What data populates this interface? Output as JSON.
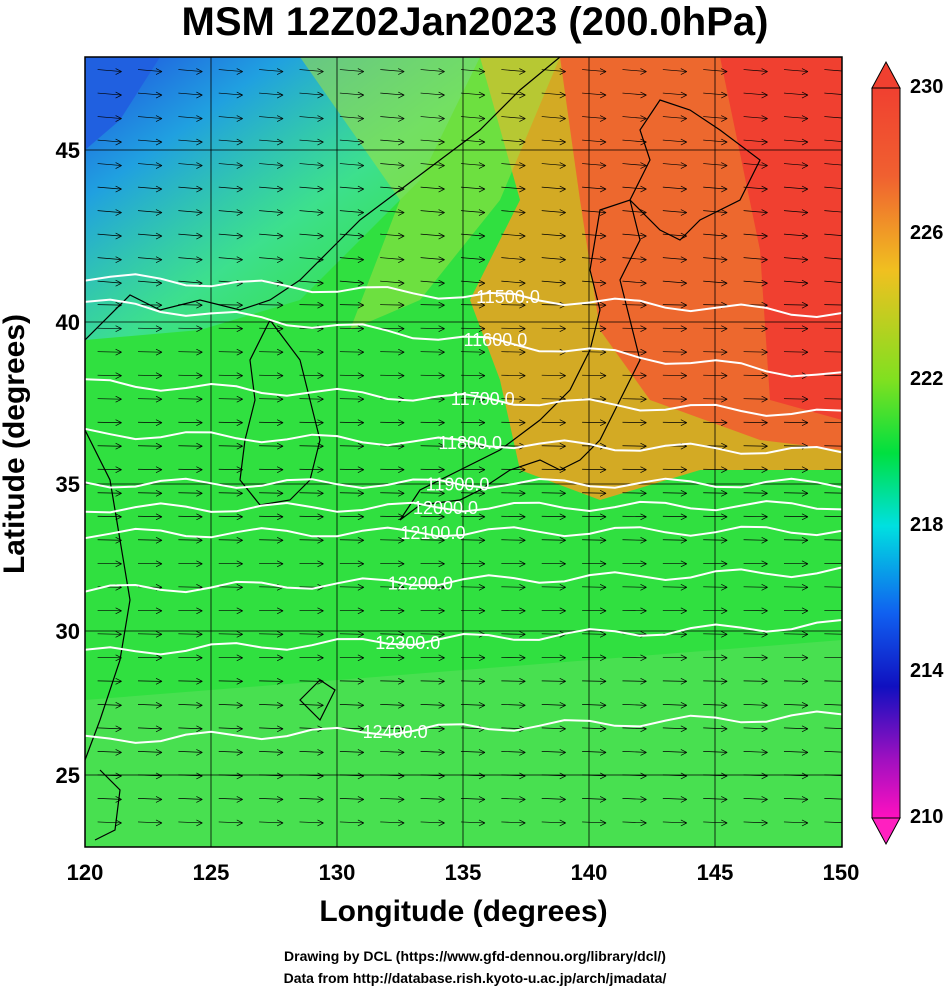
{
  "title": "MSM 12Z02Jan2023 (200.0hPa)",
  "xlabel": "Longitude (degrees)",
  "ylabel": "Latitude  (degrees)",
  "x_ticks": [
    "120",
    "125",
    "130",
    "135",
    "140",
    "145",
    "150"
  ],
  "y_ticks": [
    "45",
    "40",
    "35",
    "30",
    "25"
  ],
  "colorbar_ticks": [
    "230",
    "226",
    "222",
    "218",
    "214",
    "210"
  ],
  "credits": {
    "line1": "Drawing by DCL (https://www.gfd-dennou.org/library/dcl/)",
    "line2": "Data from http://database.rish.kyoto-u.ac.jp/arch/jmadata/"
  },
  "chart_data": {
    "type": "heatmap",
    "title": "MSM 12Z02Jan2023 (200.0hPa)",
    "xlabel": "Longitude (degrees)",
    "ylabel": "Latitude  (degrees)",
    "xlim": [
      120,
      150
    ],
    "ylim": [
      22.4,
      47.6
    ],
    "colorbar": {
      "min": 210,
      "max": 230,
      "ticks": [
        210,
        214,
        218,
        222,
        226,
        230
      ]
    },
    "colors": {
      "high": "#f04030",
      "low": "#ff00c0",
      "mid": "#00d040",
      "contour": "#ffffff",
      "wind": "#000000"
    },
    "contours": [
      {
        "label": "11500.0",
        "lat_west": 40.6,
        "lat_east": 39.4
      },
      {
        "label": "11600.0",
        "lat_west": 39.8,
        "lat_east": 37.4
      },
      {
        "label": "11700.0",
        "lat_west": 37.2,
        "lat_east": 36.2
      },
      {
        "label": "11800.0",
        "lat_west": 35.6,
        "lat_east": 35.0
      },
      {
        "label": "11900.0",
        "lat_west": 34.0,
        "lat_east": 34.0
      },
      {
        "label": "12000.0",
        "lat_west": 33.2,
        "lat_east": 33.3
      },
      {
        "label": "12100.0",
        "lat_west": 32.4,
        "lat_east": 32.5
      },
      {
        "label": "12200.0",
        "lat_west": 30.6,
        "lat_east": 31.2
      },
      {
        "label": "12300.0",
        "lat_west": 28.6,
        "lat_east": 29.5
      },
      {
        "label": "12400.0",
        "lat_west": 25.8,
        "lat_east": 26.6
      }
    ],
    "wind": "westerly (vectors)"
  }
}
